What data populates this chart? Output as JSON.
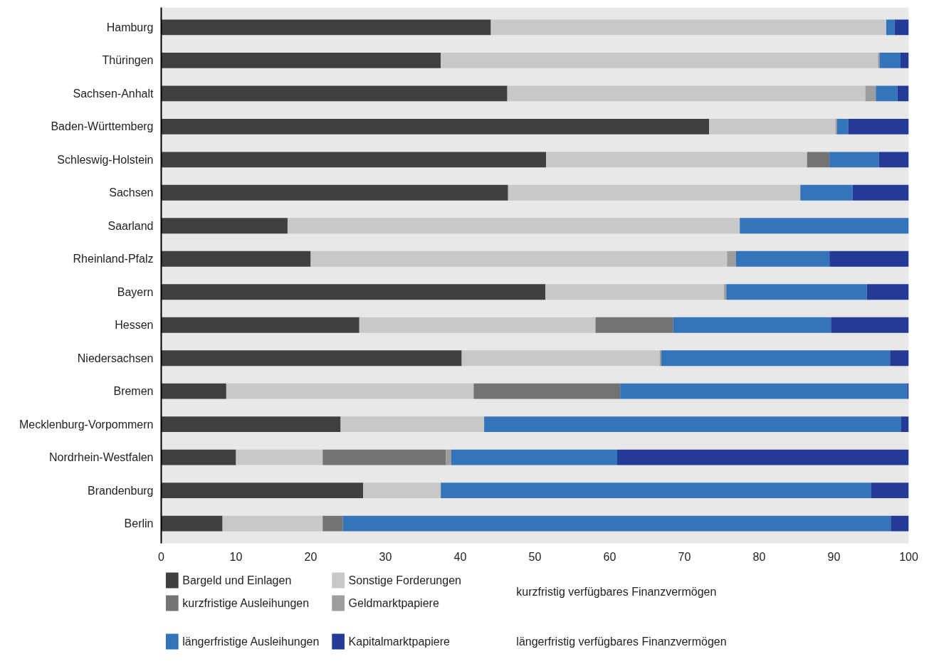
{
  "chart_data": {
    "type": "bar",
    "orientation": "horizontal",
    "stacked": true,
    "categories": [
      "Hamburg",
      "Thüringen",
      "Sachsen-Anhalt",
      "Baden-Württemberg",
      "Schleswig-Holstein",
      "Sachsen",
      "Saarland",
      "Rheinland-Pfalz",
      "Bayern",
      "Hessen",
      "Niedersachsen",
      "Bremen",
      "Mecklenburg-Vorpommern",
      "Nordrhein-Westfalen",
      "Brandenburg",
      "Berlin"
    ],
    "series": [
      {
        "name": "Bargeld und Einlagen",
        "color": "#404040",
        "values": [
          44.1,
          37.4,
          46.3,
          73.3,
          51.5,
          46.4,
          16.9,
          20.0,
          51.4,
          26.5,
          40.2,
          8.7,
          24.0,
          10.0,
          27.0,
          8.2
        ]
      },
      {
        "name": "Sonstige Forderungen",
        "color": "#c8c8c8",
        "values": [
          52.9,
          58.5,
          47.9,
          16.9,
          34.9,
          39.1,
          60.5,
          55.7,
          23.9,
          31.6,
          26.5,
          33.1,
          19.2,
          11.6,
          10.4,
          13.4
        ]
      },
      {
        "name": "kurzfristige Ausleihungen",
        "color": "#737373",
        "values": [
          0,
          0,
          0,
          0,
          3.0,
          0,
          0,
          0,
          0,
          10.4,
          0,
          19.6,
          0,
          16.5,
          0,
          2.7
        ]
      },
      {
        "name": "Geldmarktpapiere",
        "color": "#9d9d9d",
        "values": [
          0,
          0.2,
          1.4,
          0.2,
          0,
          0,
          0,
          1.2,
          0.3,
          0,
          0.2,
          0,
          0,
          0.7,
          0,
          0
        ]
      },
      {
        "name": "längerfristige Ausleihungen",
        "color": "#3474bb",
        "values": [
          1.1,
          2.8,
          2.9,
          1.5,
          6.6,
          7.0,
          22.6,
          12.5,
          18.8,
          21.1,
          30.6,
          38.4,
          55.8,
          22.2,
          57.6,
          73.3
        ]
      },
      {
        "name": "Kapitalmarktpapiere",
        "color": "#233b96",
        "values": [
          1.9,
          1.1,
          1.5,
          8.1,
          4.0,
          7.5,
          0,
          10.6,
          5.6,
          10.4,
          2.5,
          0.2,
          1.0,
          39.0,
          5.0,
          2.4
        ]
      }
    ],
    "xlim": [
      0,
      100
    ],
    "xticks": [
      0,
      10,
      20,
      30,
      40,
      50,
      60,
      70,
      80,
      90,
      100
    ],
    "legend": "bottom",
    "annotations": [
      "kurzfristig verfügbares Finanzvermögen",
      "längerfristig verfügbares Finanzvermögen"
    ]
  }
}
